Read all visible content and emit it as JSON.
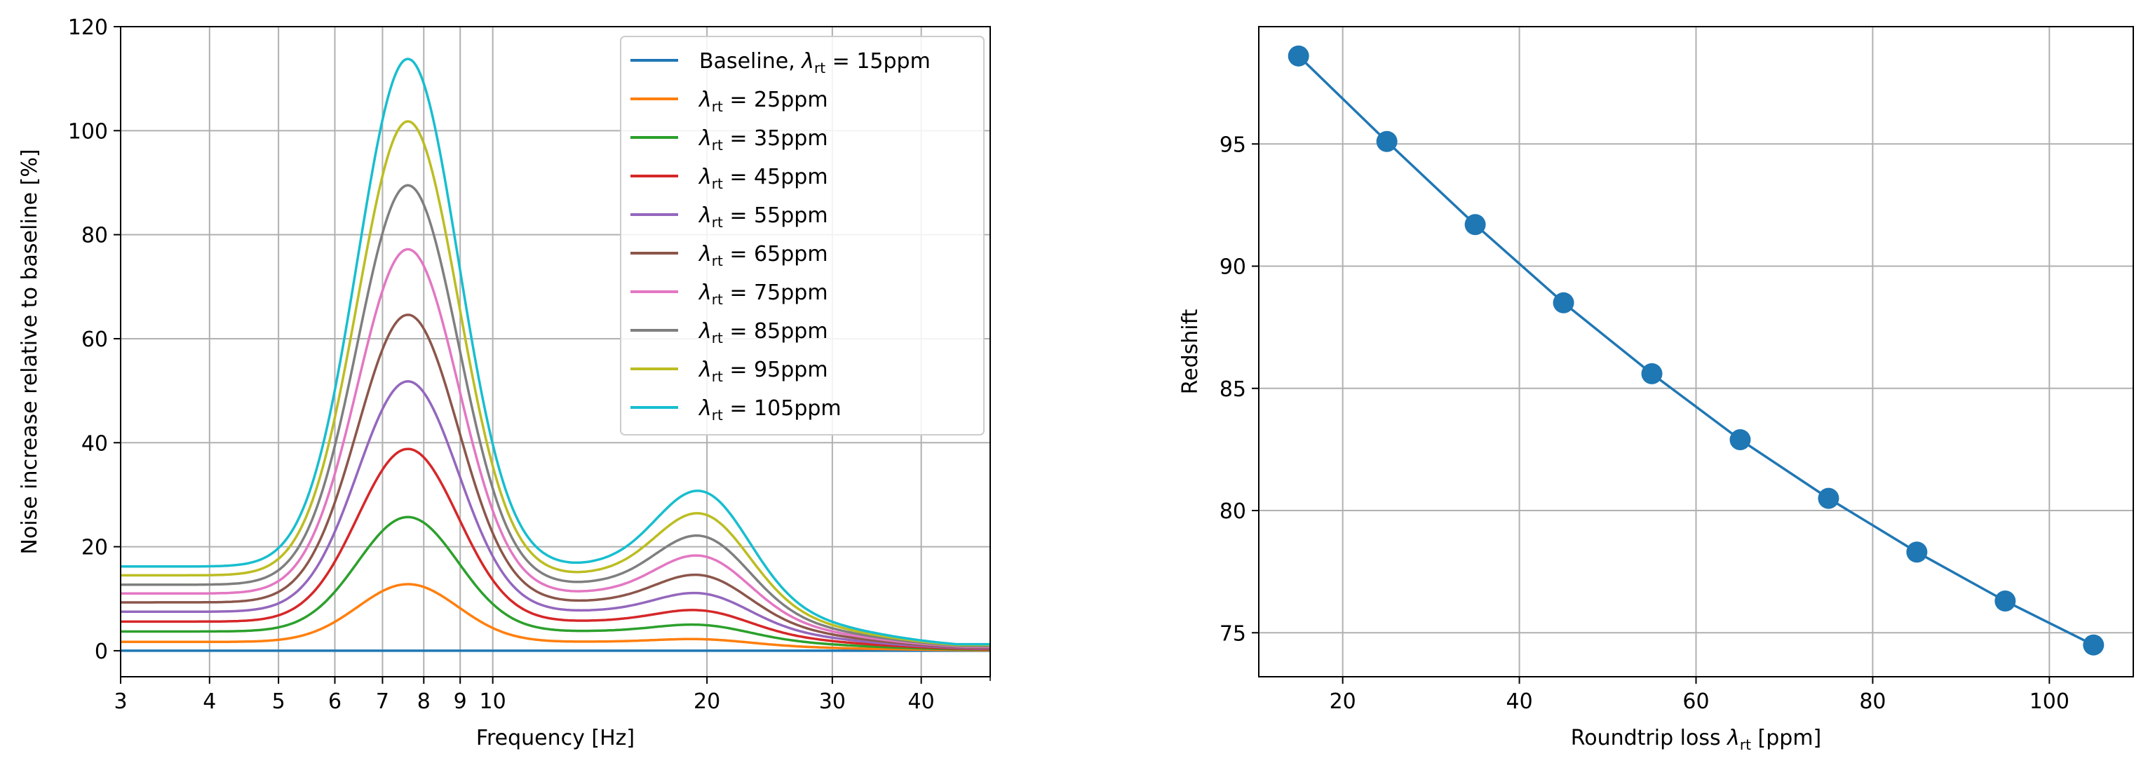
{
  "chart_data": [
    {
      "type": "line",
      "xscale": "log",
      "xlabel": "Frequency [Hz]",
      "ylabel": "Noise increase relative to baseline [%]",
      "xlim": [
        3,
        50
      ],
      "ylim": [
        -5,
        120
      ],
      "xticks": [
        3,
        4,
        5,
        6,
        7,
        8,
        9,
        10,
        20,
        30,
        40
      ],
      "xtick_labels": [
        "3",
        "4",
        "5",
        "6",
        "7",
        "8",
        "9",
        "10",
        "20",
        "30",
        "40"
      ],
      "yticks": [
        0,
        20,
        40,
        60,
        80,
        100,
        120
      ],
      "ytick_labels": [
        "0",
        "20",
        "40",
        "60",
        "80",
        "100",
        "120"
      ],
      "grid": true,
      "legend_position": "top-right",
      "series": [
        {
          "name_prefix": "Baseline, ",
          "name_suffix": " = 15ppm",
          "color": "#1f77b4",
          "floor": 0,
          "peak1": 0,
          "trough": 0,
          "peak2": 0,
          "end": 0
        },
        {
          "name_prefix": "",
          "name_suffix": " = 25ppm",
          "color": "#ff7f0e",
          "floor": 1.7,
          "peak1": 12.8,
          "trough": 1.9,
          "peak2": 2.8,
          "end": 0.1
        },
        {
          "name_prefix": "",
          "name_suffix": " = 35ppm",
          "color": "#2ca02c",
          "floor": 3.7,
          "peak1": 25.7,
          "trough": 3.9,
          "peak2": 6.0,
          "end": 0.2
        },
        {
          "name_prefix": "",
          "name_suffix": " = 45ppm",
          "color": "#d62728",
          "floor": 5.6,
          "peak1": 38.8,
          "trough": 6.0,
          "peak2": 9.4,
          "end": 0.3
        },
        {
          "name_prefix": "",
          "name_suffix": " = 55ppm",
          "color": "#9467bd",
          "floor": 7.5,
          "peak1": 51.8,
          "trough": 8.0,
          "peak2": 13.2,
          "end": 0.45
        },
        {
          "name_prefix": "",
          "name_suffix": " = 65ppm",
          "color": "#8c564b",
          "floor": 9.3,
          "peak1": 64.6,
          "trough": 9.9,
          "peak2": 17.2,
          "end": 0.6
        },
        {
          "name_prefix": "",
          "name_suffix": " = 75ppm",
          "color": "#e377c2",
          "floor": 11.0,
          "peak1": 77.2,
          "trough": 11.8,
          "peak2": 21.5,
          "end": 0.75
        },
        {
          "name_prefix": "",
          "name_suffix": " = 85ppm",
          "color": "#7f7f7f",
          "floor": 12.7,
          "peak1": 89.5,
          "trough": 13.6,
          "peak2": 25.8,
          "end": 0.9
        },
        {
          "name_prefix": "",
          "name_suffix": " = 95ppm",
          "color": "#bcbd22",
          "floor": 14.5,
          "peak1": 101.8,
          "trough": 15.4,
          "peak2": 30.5,
          "end": 1.1
        },
        {
          "name_prefix": "",
          "name_suffix": " = 105ppm",
          "color": "#17becf",
          "floor": 16.2,
          "peak1": 113.8,
          "trough": 17.2,
          "peak2": 35.3,
          "end": 1.25
        }
      ]
    },
    {
      "type": "line",
      "xlabel_prefix": "Roundtrip loss ",
      "xlabel_suffix": " [ppm]",
      "ylabel": "Redshift",
      "xlim": [
        10.5,
        109.5
      ],
      "ylim": [
        73.2,
        99.8
      ],
      "xticks": [
        20,
        40,
        60,
        80,
        100
      ],
      "xtick_labels": [
        "20",
        "40",
        "60",
        "80",
        "100"
      ],
      "yticks": [
        75,
        80,
        85,
        90,
        95
      ],
      "ytick_labels": [
        "75",
        "80",
        "85",
        "90",
        "95"
      ],
      "grid": true,
      "color": "#1f77b4",
      "x": [
        15,
        25,
        35,
        45,
        55,
        65,
        75,
        85,
        95,
        105
      ],
      "y": [
        98.6,
        95.1,
        91.7,
        88.5,
        85.6,
        82.9,
        80.5,
        78.3,
        76.3,
        74.5
      ]
    }
  ],
  "symbols": {
    "lambda": "λ",
    "rt": "rt"
  }
}
